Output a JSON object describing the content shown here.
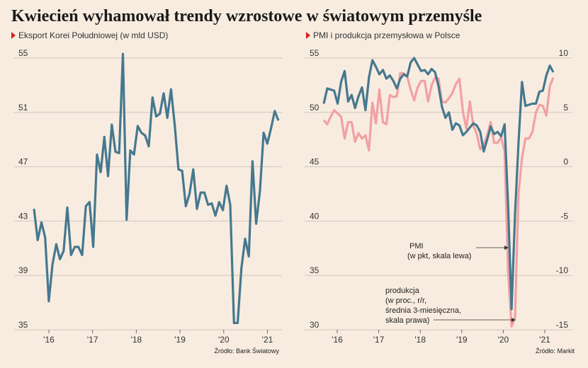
{
  "title": "Kwiecień wyhamował trendy wzrostowe w światowym przemyśle",
  "colors": {
    "line": "#45788f",
    "pink": "#f2a0a4",
    "marker": "#d42020",
    "grid": "#cfc6bd"
  },
  "chart_data": [
    {
      "type": "line",
      "subtitle": "Eksport Korei Południowej (w mld USD)",
      "source": "Źródło: Bank Światowy",
      "ylim": [
        35,
        56
      ],
      "y_ticks": [
        "55",
        "51",
        "47",
        "43",
        "39",
        "35"
      ],
      "x_ticks": [
        "'16",
        "'17",
        "'18",
        "'19",
        "'20",
        "'21"
      ],
      "grid": true,
      "series": [
        {
          "values": [
            43.9,
            41.6,
            42.9,
            41.8,
            37.1,
            39.8,
            41.3,
            40.2,
            40.8,
            44.0,
            40.5,
            41.1,
            41.1,
            40.5,
            44.1,
            44.4,
            41.1,
            47.9,
            46.6,
            49.2,
            46.3,
            50.1,
            48.1,
            48.0,
            55.3,
            43.1,
            48.2,
            47.9,
            50.0,
            49.5,
            49.3,
            48.5,
            52.1,
            50.7,
            50.9,
            52.4,
            50.6,
            52.7,
            50.1,
            46.8,
            46.7,
            44.1,
            45.0,
            46.8,
            43.9,
            45.1,
            45.1,
            44.2,
            44.3,
            43.4,
            44.4,
            43.8,
            45.6,
            44.2,
            35.5,
            35.5,
            39.5,
            41.7,
            40.4,
            47.4,
            42.8,
            45.2,
            49.5,
            48.7,
            49.8,
            51.1,
            50.4
          ]
        }
      ]
    },
    {
      "type": "line",
      "subtitle": "PMI i produkcja przemysłowa w Polsce",
      "source": "Źródło: Markit",
      "ylim": [
        30,
        55
      ],
      "y2lim": [
        -15,
        10
      ],
      "y_ticks": [
        "55",
        "50",
        "45",
        "40",
        "35",
        "30"
      ],
      "y2_ticks": [
        "10",
        "5",
        "0",
        "-5",
        "-10",
        "-15"
      ],
      "x_ticks": [
        "'16",
        "'17",
        "'18",
        "'19",
        "'20",
        "'21"
      ],
      "grid": true,
      "annotations": [
        {
          "lines": [
            "PMI",
            "(w pkt, skala lewa)"
          ]
        },
        {
          "lines": [
            "produkcja",
            "(w proc., r/r,",
            "średnia 3-miesięczna,",
            "skala prawa)"
          ]
        }
      ],
      "series": [
        {
          "axis": "left",
          "values": [
            50.8,
            52.2,
            52.1,
            52.0,
            50.8,
            52.8,
            53.8,
            51.0,
            51.6,
            50.4,
            51.5,
            52.3,
            50.2,
            53.2,
            54.8,
            54.2,
            53.5,
            53.9,
            53.1,
            53.4,
            52.9,
            52.2,
            53.1,
            53.5,
            53.3,
            54.6,
            55.0,
            54.4,
            53.8,
            53.9,
            53.5,
            54.0,
            53.7,
            52.4,
            50.5,
            49.5,
            50.0,
            48.4,
            49.0,
            48.8,
            47.9,
            48.2,
            48.6,
            49.0,
            48.8,
            48.2,
            46.4,
            47.5,
            48.7,
            48.0,
            48.2,
            47.8,
            48.9,
            41.5,
            31.9,
            40.6,
            47.2,
            52.8,
            50.6,
            50.7,
            50.8,
            50.8,
            51.9,
            52.0,
            53.4,
            54.3,
            53.7
          ]
        },
        {
          "axis": "right",
          "values": [
            4.3,
            3.9,
            4.6,
            5.2,
            4.9,
            4.6,
            2.6,
            4.1,
            4.1,
            2.3,
            3.1,
            2.6,
            2.9,
            1.5,
            5.9,
            4.0,
            7.1,
            4.1,
            3.9,
            6.6,
            6.4,
            6.5,
            8.6,
            8.6,
            8.3,
            7.1,
            6.1,
            7.3,
            7.9,
            7.9,
            6.0,
            7.5,
            8.2,
            8.1,
            6.0,
            5.9,
            6.3,
            6.8,
            7.6,
            8.1,
            5.1,
            3.5,
            6.0,
            3.8,
            3.0,
            1.6,
            2.0,
            2.9,
            4.1,
            2.2,
            2.2,
            2.7,
            1.4,
            -9.6,
            -14.7,
            -13.9,
            -2.5,
            0.8,
            2.6,
            2.6,
            3.2,
            5.0,
            5.7,
            5.6,
            4.7,
            7.4,
            8.2
          ]
        }
      ]
    }
  ]
}
